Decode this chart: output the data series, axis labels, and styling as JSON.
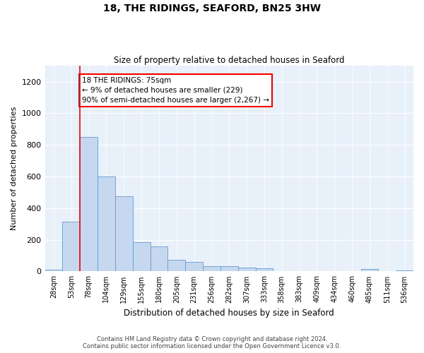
{
  "title": "18, THE RIDINGS, SEAFORD, BN25 3HW",
  "subtitle": "Size of property relative to detached houses in Seaford",
  "xlabel": "Distribution of detached houses by size in Seaford",
  "ylabel": "Number of detached properties",
  "categories": [
    "28sqm",
    "53sqm",
    "78sqm",
    "104sqm",
    "129sqm",
    "155sqm",
    "180sqm",
    "205sqm",
    "231sqm",
    "256sqm",
    "282sqm",
    "307sqm",
    "333sqm",
    "358sqm",
    "383sqm",
    "409sqm",
    "434sqm",
    "460sqm",
    "485sqm",
    "511sqm",
    "536sqm"
  ],
  "values": [
    10,
    315,
    850,
    600,
    475,
    185,
    160,
    75,
    60,
    35,
    35,
    25,
    20,
    0,
    0,
    0,
    0,
    0,
    15,
    0,
    5
  ],
  "bar_color": "#c5d8f0",
  "bar_edge_color": "#6699cc",
  "background_color": "#e8f0fa",
  "ylim": [
    0,
    1300
  ],
  "yticks": [
    0,
    200,
    400,
    600,
    800,
    1000,
    1200
  ],
  "red_line_index": 2,
  "annotation_text": "18 THE RIDINGS: 75sqm\n← 9% of detached houses are smaller (229)\n90% of semi-detached houses are larger (2,267) →",
  "footnote1": "Contains HM Land Registry data © Crown copyright and database right 2024.",
  "footnote2": "Contains public sector information licensed under the Open Government Licence v3.0."
}
